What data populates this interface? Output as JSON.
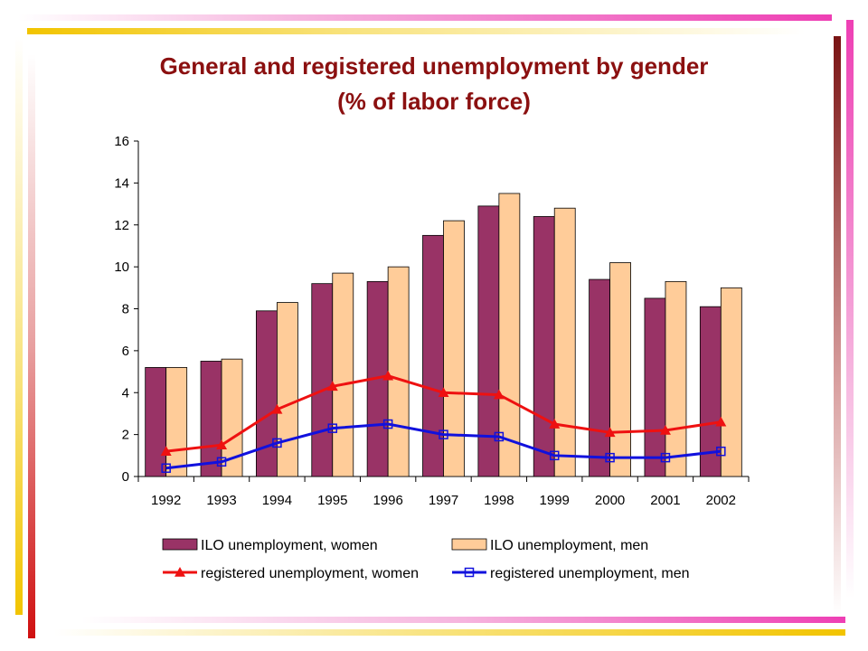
{
  "title": "General and registered unemployment by gender",
  "subtitle": "(% of labor force)",
  "colors": {
    "ilo_women": "#993366",
    "ilo_men": "#ffcc99",
    "reg_women": "#ee1111",
    "reg_men": "#1111dd"
  },
  "chart_data": {
    "type": "bar",
    "categories": [
      "1992",
      "1993",
      "1994",
      "1995",
      "1996",
      "1997",
      "1998",
      "1999",
      "2000",
      "2001",
      "2002"
    ],
    "ylim": [
      0,
      16
    ],
    "yticks": [
      0,
      2,
      4,
      6,
      8,
      10,
      12,
      14,
      16
    ],
    "grid": false,
    "legend_position": "bottom",
    "series": [
      {
        "name": "ILO unemployment, women",
        "type": "bar",
        "values": [
          5.2,
          5.5,
          7.9,
          9.2,
          9.3,
          11.5,
          12.9,
          12.4,
          9.4,
          8.5,
          8.1
        ]
      },
      {
        "name": "ILO unemployment, men",
        "type": "bar",
        "values": [
          5.2,
          5.6,
          8.3,
          9.7,
          10.0,
          12.2,
          13.5,
          12.8,
          10.2,
          9.3,
          9.0
        ]
      },
      {
        "name": "registered unemployment, women",
        "type": "line",
        "marker": "triangle",
        "values": [
          1.2,
          1.5,
          3.2,
          4.3,
          4.8,
          4.0,
          3.9,
          2.5,
          2.1,
          2.2,
          2.6
        ]
      },
      {
        "name": "registered unemployment, men",
        "type": "line",
        "marker": "square",
        "values": [
          0.4,
          0.7,
          1.6,
          2.3,
          2.5,
          2.0,
          1.9,
          1.0,
          0.9,
          0.9,
          1.2
        ]
      }
    ]
  }
}
